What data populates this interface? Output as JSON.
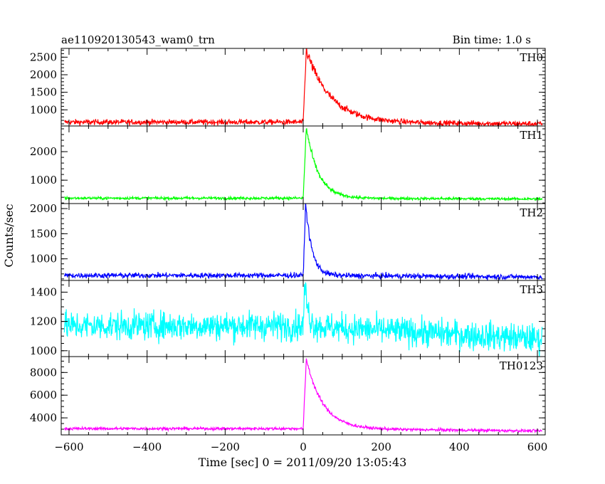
{
  "header": {
    "left_title": "ae110920130543_wam0_trn",
    "right_title": "Bin time: 1.0 s"
  },
  "chart_data": {
    "type": "line",
    "ylabel": "Counts/sec",
    "xlabel": "Time [sec] 0 = 2011/09/20 13:05:43",
    "xlim": [
      -620,
      620
    ],
    "x_ticks": [
      -600,
      -400,
      -200,
      0,
      200,
      400,
      600
    ],
    "x_tick_labels": [
      "−600",
      "−400",
      "−200",
      "0",
      "200",
      "400",
      "600"
    ],
    "grid": false,
    "panels": [
      {
        "name": "TH0",
        "color": "#ff0000",
        "ylim": [
          540,
          2750
        ],
        "y_ticks": [
          1000,
          1500,
          2000,
          2500
        ],
        "y_tick_labels": [
          "1000",
          "1500",
          "2000",
          "2500"
        ],
        "y_minor_step": 100,
        "baseline_pre": 650,
        "baseline_post": 600,
        "peak": 2700,
        "peak_time": 8,
        "rise": 8,
        "tau": 60,
        "noise": 55
      },
      {
        "name": "TH1",
        "color": "#00ff00",
        "ylim": [
          180,
          2900
        ],
        "y_ticks": [
          1000,
          2000
        ],
        "y_tick_labels": [
          "1000",
          "2000"
        ],
        "y_minor_step": 200,
        "baseline_pre": 370,
        "baseline_post": 340,
        "peak": 2850,
        "peak_time": 8,
        "rise": 8,
        "tau": 30,
        "noise": 35
      },
      {
        "name": "TH2",
        "color": "#0000ff",
        "ylim": [
          570,
          2100
        ],
        "y_ticks": [
          1000,
          1500,
          2000
        ],
        "y_tick_labels": [
          "1000",
          "1500",
          "2000"
        ],
        "y_minor_step": 100,
        "baseline_pre": 670,
        "baseline_post": 640,
        "peak": 2050,
        "peak_time": 7,
        "rise": 6,
        "tau": 16,
        "noise": 38
      },
      {
        "name": "TH3",
        "color": "#00ffff",
        "ylim": [
          960,
          1480
        ],
        "y_ticks": [
          1000,
          1200,
          1400
        ],
        "y_tick_labels": [
          "1000",
          "1200",
          "1400"
        ],
        "y_minor_step": 50,
        "baseline_pre": 1170,
        "baseline_post": 1080,
        "peak": 1440,
        "peak_time": 5,
        "rise": 4,
        "tau": 8,
        "noise": 70
      },
      {
        "name": "TH0123",
        "color": "#ff00ff",
        "ylim": [
          2500,
          9400
        ],
        "y_ticks": [
          4000,
          6000,
          8000
        ],
        "y_tick_labels": [
          "4000",
          "6000",
          "8000"
        ],
        "y_minor_step": 500,
        "baseline_pre": 3050,
        "baseline_post": 2850,
        "peak": 9200,
        "peak_time": 8,
        "rise": 8,
        "tau": 42,
        "noise": 90
      }
    ]
  }
}
